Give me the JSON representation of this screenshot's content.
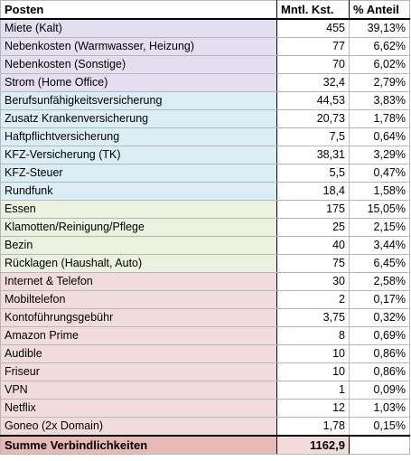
{
  "headers": {
    "name": "Posten",
    "value": "Mntl. Kst.",
    "percent": "% Anteil"
  },
  "groups": [
    {
      "id": "wohnen",
      "color": "#e4dff0",
      "rows": [
        {
          "name": "Miete (Kalt)",
          "value": "455",
          "percent": "39,13%"
        },
        {
          "name": "Nebenkosten (Warmwasser, Heizung)",
          "value": "77",
          "percent": "6,62%"
        },
        {
          "name": "Nebenkosten (Sonstige)",
          "value": "70",
          "percent": "6,02%"
        },
        {
          "name": "Strom (Home Office)",
          "value": "32,4",
          "percent": "2,79%"
        }
      ]
    },
    {
      "id": "versich",
      "color": "#dbeef6",
      "rows": [
        {
          "name": "Berufsunfähigkeitsversicherung",
          "value": "44,53",
          "percent": "3,83%"
        },
        {
          "name": "Zusatz Krankenversicherung",
          "value": "20,73",
          "percent": "1,78%"
        },
        {
          "name": "Haftpflichtversicherung",
          "value": "7,5",
          "percent": "0,64%"
        },
        {
          "name": "KFZ-Versicherung (TK)",
          "value": "38,31",
          "percent": "3,29%"
        },
        {
          "name": "KFZ-Steuer",
          "value": "5,5",
          "percent": "0,47%"
        },
        {
          "name": "Rundfunk",
          "value": "18,4",
          "percent": "1,58%"
        }
      ]
    },
    {
      "id": "leben",
      "color": "#ebf1de",
      "rows": [
        {
          "name": "Essen",
          "value": "175",
          "percent": "15,05%"
        },
        {
          "name": "Klamotten/Reinigung/Pflege",
          "value": "25",
          "percent": "2,15%"
        },
        {
          "name": "Bezin",
          "value": "40",
          "percent": "3,44%"
        },
        {
          "name": "Rücklagen (Haushalt, Auto)",
          "value": "75",
          "percent": "6,45%"
        }
      ]
    },
    {
      "id": "abos",
      "color": "#f2dcdb",
      "rows": [
        {
          "name": "Internet & Telefon",
          "value": "30",
          "percent": "2,58%"
        },
        {
          "name": "Mobiltelefon",
          "value": "2",
          "percent": "0,17%"
        },
        {
          "name": "Kontoführungsgebühr",
          "value": "3,75",
          "percent": "0,32%"
        },
        {
          "name": "Amazon Prime",
          "value": "8",
          "percent": "0,69%"
        },
        {
          "name": "Audible",
          "value": "10",
          "percent": "0,86%"
        },
        {
          "name": "Friseur",
          "value": "10",
          "percent": "0,86%"
        },
        {
          "name": "VPN",
          "value": "1",
          "percent": "0,09%"
        },
        {
          "name": "Netflix",
          "value": "12",
          "percent": "1,03%"
        },
        {
          "name": "Goneo (2x Domain)",
          "value": "1,78",
          "percent": "0,15%"
        }
      ]
    }
  ],
  "total": {
    "label": "Summe Verbindlichkeiten",
    "value": "1162,9",
    "percent": ""
  }
}
